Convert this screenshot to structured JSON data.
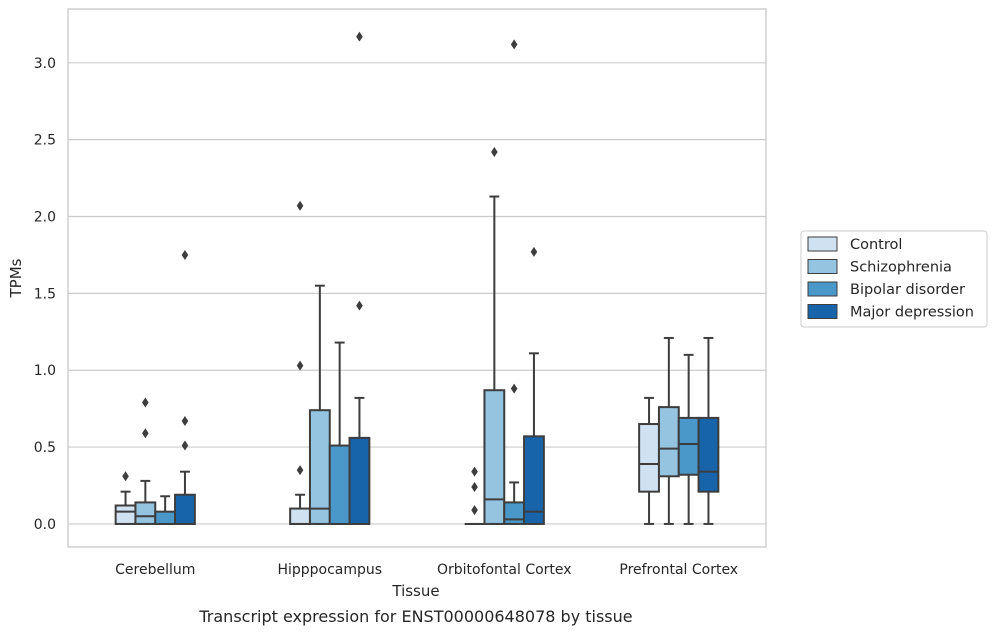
{
  "chart_data": {
    "type": "box",
    "title": "Transcript expression for ENST00000648078 by tissue",
    "xlabel": "Tissue",
    "ylabel": "TPMs",
    "categories": [
      "Cerebellum",
      "Hipppocampus",
      "Orbitofontal Cortex",
      "Prefrontal Cortex"
    ],
    "ylim": [
      -0.15,
      3.35
    ],
    "yticks": [
      "0.0",
      "0.5",
      "1.0",
      "1.5",
      "2.0",
      "2.5",
      "3.0"
    ],
    "grid": "horizontal",
    "legend_position": "right",
    "colors": {
      "Control": "#d0e1f2",
      "Schizophrenia": "#94c4df",
      "Bipolar disorder": "#4a98c9",
      "Major depression": "#1764ab",
      "line": "#3d3d3d",
      "grid": "#cccccc"
    },
    "series": [
      {
        "name": "Control",
        "boxes": [
          {
            "whisker_low": 0.0,
            "q1": 0.0,
            "median": 0.08,
            "q3": 0.12,
            "whisker_high": 0.21,
            "outliers": [
              0.31
            ]
          },
          {
            "whisker_low": 0.0,
            "q1": 0.0,
            "median": 0.0,
            "q3": 0.1,
            "whisker_high": 0.19,
            "outliers": [
              0.35,
              1.03,
              2.07
            ]
          },
          {
            "whisker_low": 0.0,
            "q1": 0.0,
            "median": 0.0,
            "q3": 0.0,
            "whisker_high": 0.0,
            "outliers": [
              0.09,
              0.24,
              0.34
            ]
          },
          {
            "whisker_low": 0.0,
            "q1": 0.21,
            "median": 0.39,
            "q3": 0.65,
            "whisker_high": 0.82,
            "outliers": []
          }
        ]
      },
      {
        "name": "Schizophrenia",
        "boxes": [
          {
            "whisker_low": 0.0,
            "q1": 0.0,
            "median": 0.05,
            "q3": 0.14,
            "whisker_high": 0.28,
            "outliers": [
              0.59,
              0.79
            ]
          },
          {
            "whisker_low": 0.0,
            "q1": 0.0,
            "median": 0.1,
            "q3": 0.74,
            "whisker_high": 1.55,
            "outliers": []
          },
          {
            "whisker_low": 0.0,
            "q1": 0.0,
            "median": 0.16,
            "q3": 0.87,
            "whisker_high": 2.13,
            "outliers": [
              2.42
            ]
          },
          {
            "whisker_low": 0.0,
            "q1": 0.31,
            "median": 0.49,
            "q3": 0.76,
            "whisker_high": 1.21,
            "outliers": []
          }
        ]
      },
      {
        "name": "Bipolar disorder",
        "boxes": [
          {
            "whisker_low": 0.0,
            "q1": 0.0,
            "median": 0.0,
            "q3": 0.08,
            "whisker_high": 0.18,
            "outliers": []
          },
          {
            "whisker_low": 0.0,
            "q1": 0.0,
            "median": 0.0,
            "q3": 0.51,
            "whisker_high": 1.18,
            "outliers": []
          },
          {
            "whisker_low": 0.0,
            "q1": 0.0,
            "median": 0.03,
            "q3": 0.14,
            "whisker_high": 0.27,
            "outliers": [
              0.88,
              3.12
            ]
          },
          {
            "whisker_low": 0.0,
            "q1": 0.32,
            "median": 0.52,
            "q3": 0.69,
            "whisker_high": 1.1,
            "outliers": []
          }
        ]
      },
      {
        "name": "Major depression",
        "boxes": [
          {
            "whisker_low": 0.0,
            "q1": 0.0,
            "median": 0.0,
            "q3": 0.19,
            "whisker_high": 0.34,
            "outliers": [
              0.51,
              0.67,
              1.75
            ]
          },
          {
            "whisker_low": 0.0,
            "q1": 0.0,
            "median": 0.0,
            "q3": 0.56,
            "whisker_high": 0.82,
            "outliers": [
              1.42,
              3.17
            ]
          },
          {
            "whisker_low": 0.0,
            "q1": 0.0,
            "median": 0.08,
            "q3": 0.57,
            "whisker_high": 1.11,
            "outliers": [
              1.77
            ]
          },
          {
            "whisker_low": 0.0,
            "q1": 0.21,
            "median": 0.34,
            "q3": 0.69,
            "whisker_high": 1.21,
            "outliers": []
          }
        ]
      }
    ]
  }
}
